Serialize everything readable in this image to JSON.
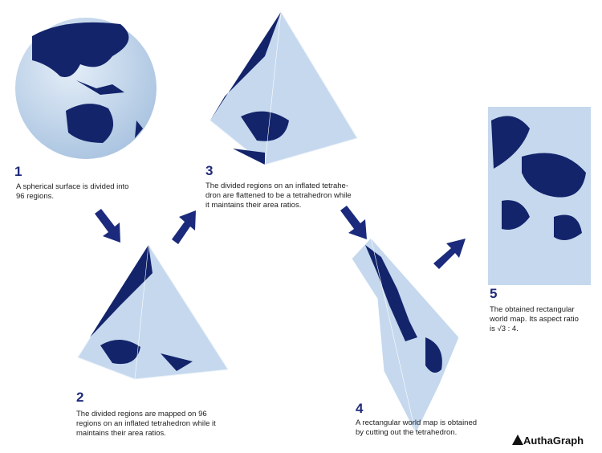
{
  "steps": [
    {
      "number": "1",
      "lines": [
        "A spherical surface is divided into",
        "96 regions."
      ]
    },
    {
      "number": "2",
      "lines": [
        "The divided regions are mapped on 96",
        "regions on an inflated tetrahedron while it",
        "maintains their area ratios."
      ]
    },
    {
      "number": "3",
      "lines": [
        "The divided regions on an inflated tetrahe-",
        "dron are flattened to be a tetrahedron while",
        "it maintains their area ratios."
      ]
    },
    {
      "number": "4",
      "lines": [
        "A rectangular world map is obtained",
        "by cutting out the tetrahedron."
      ]
    },
    {
      "number": "5",
      "lines": [
        "The obtained rectangular",
        "world map.  Its aspect ratio",
        "is √3 : 4."
      ]
    }
  ],
  "logo": "AuthaGraph"
}
